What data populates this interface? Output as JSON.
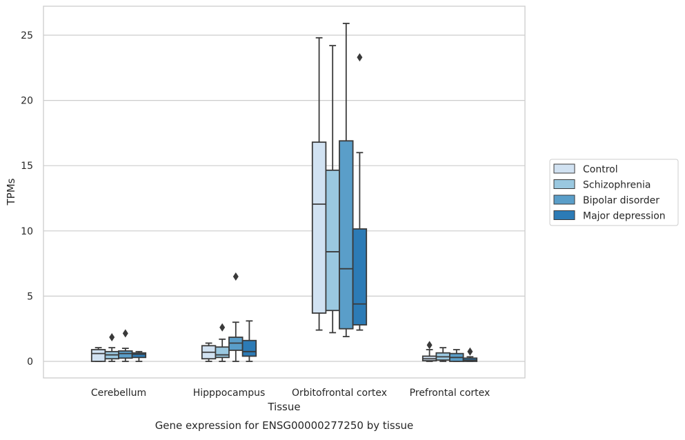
{
  "chart_data": {
    "type": "box",
    "title": "Gene expression for ENSG00000277250 by tissue",
    "xlabel": "Tissue",
    "ylabel": "TPMs",
    "ylim": [
      -1.2,
      27
    ],
    "yticks": [
      0,
      5,
      10,
      15,
      20,
      25
    ],
    "categories": [
      "Cerebellum",
      "Hipppocampus",
      "Orbitofrontal cortex",
      "Prefrontal cortex"
    ],
    "grid": "horizontal",
    "legend_position": "right",
    "series": [
      {
        "name": "Control",
        "color": "#d1e2f2",
        "boxes": [
          {
            "min": 0.0,
            "q1": 0.0,
            "median": 0.6,
            "q3": 0.9,
            "max": 1.05,
            "outliers": []
          },
          {
            "min": 0.0,
            "q1": 0.2,
            "median": 0.7,
            "q3": 1.2,
            "max": 1.4,
            "outliers": []
          },
          {
            "min": 2.4,
            "q1": 3.7,
            "median": 12.05,
            "q3": 16.8,
            "max": 24.8,
            "outliers": []
          },
          {
            "min": 0.0,
            "q1": 0.05,
            "median": 0.2,
            "q3": 0.4,
            "max": 0.9,
            "outliers": [
              1.25
            ]
          }
        ]
      },
      {
        "name": "Schizophrenia",
        "color": "#9ac8e0",
        "boxes": [
          {
            "min": 0.0,
            "q1": 0.2,
            "median": 0.5,
            "q3": 0.75,
            "max": 1.05,
            "outliers": [
              1.85
            ]
          },
          {
            "min": 0.0,
            "q1": 0.3,
            "median": 0.5,
            "q3": 1.1,
            "max": 1.7,
            "outliers": [
              2.6
            ]
          },
          {
            "min": 2.2,
            "q1": 3.9,
            "median": 8.4,
            "q3": 14.65,
            "max": 24.2,
            "outliers": []
          },
          {
            "min": 0.0,
            "q1": 0.1,
            "median": 0.35,
            "q3": 0.65,
            "max": 1.05,
            "outliers": []
          }
        ]
      },
      {
        "name": "Bipolar disorder",
        "color": "#5a9ec9",
        "boxes": [
          {
            "min": 0.0,
            "q1": 0.25,
            "median": 0.6,
            "q3": 0.8,
            "max": 1.0,
            "outliers": [
              2.15
            ]
          },
          {
            "min": 0.0,
            "q1": 0.85,
            "median": 1.4,
            "q3": 1.85,
            "max": 3.0,
            "outliers": [
              6.5
            ]
          },
          {
            "min": 1.9,
            "q1": 2.5,
            "median": 7.1,
            "q3": 16.9,
            "max": 25.9,
            "outliers": []
          },
          {
            "min": 0.0,
            "q1": 0.0,
            "median": 0.3,
            "q3": 0.6,
            "max": 0.9,
            "outliers": []
          }
        ]
      },
      {
        "name": "Major depression",
        "color": "#2c7bb6",
        "boxes": [
          {
            "min": 0.0,
            "q1": 0.3,
            "median": 0.55,
            "q3": 0.65,
            "max": 0.75,
            "outliers": []
          },
          {
            "min": 0.0,
            "q1": 0.4,
            "median": 0.75,
            "q3": 1.6,
            "max": 3.1,
            "outliers": []
          },
          {
            "min": 2.4,
            "q1": 2.8,
            "median": 4.4,
            "q3": 10.15,
            "max": 16.0,
            "outliers": [
              23.3
            ]
          },
          {
            "min": 0.0,
            "q1": 0.0,
            "median": 0.1,
            "q3": 0.25,
            "max": 0.35,
            "outliers": [
              0.75
            ]
          }
        ]
      }
    ]
  }
}
